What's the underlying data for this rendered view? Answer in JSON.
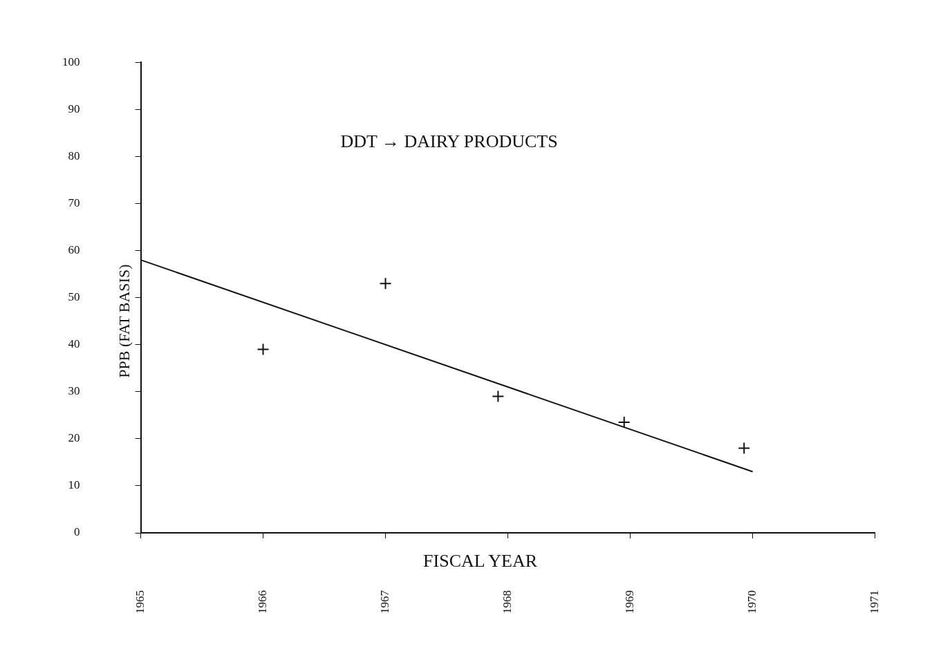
{
  "chart_data": {
    "type": "scatter",
    "title": "DDT → DAIRY PRODUCTS",
    "xlabel": "FISCAL YEAR",
    "ylabel": "PPB (FAT BASIS)",
    "xlim": [
      1965,
      1971
    ],
    "ylim": [
      0,
      100
    ],
    "xticks": [
      1965,
      1966,
      1967,
      1968,
      1969,
      1970,
      1971
    ],
    "yticks": [
      0,
      10,
      20,
      30,
      40,
      50,
      60,
      70,
      80,
      90,
      100
    ],
    "marker": "cross",
    "legend": false,
    "series": [
      {
        "type": "scatter",
        "color": "#111111",
        "x": [
          1966,
          1967,
          1967.92,
          1968.95,
          1969.93
        ],
        "values": [
          39,
          53,
          29,
          23.5,
          18
        ]
      },
      {
        "type": "line",
        "color": "#111111",
        "line_style": "solid",
        "marker": "none",
        "x": [
          1965,
          1970
        ],
        "values": [
          58,
          13
        ]
      }
    ]
  }
}
